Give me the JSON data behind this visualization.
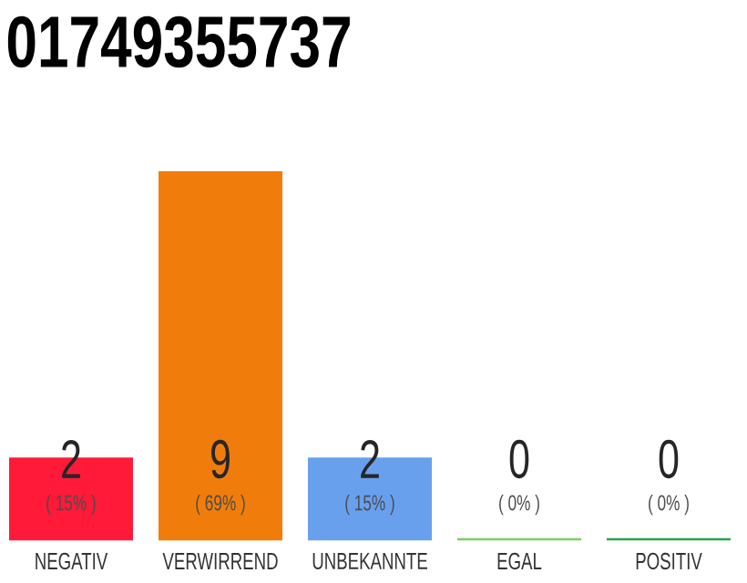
{
  "chart_data": {
    "type": "bar",
    "title": "01749355737",
    "categories": [
      "NEGATIV",
      "VERWIRREND",
      "UNBEKANNTE",
      "EGAL",
      "POSITIV"
    ],
    "values": [
      2,
      9,
      2,
      0,
      0
    ],
    "colors": [
      "#ff1a3a",
      "#f07d0b",
      "#69a0ee",
      "#7dcc6a",
      "#22a845"
    ],
    "data_labels": true,
    "annotations": [
      "( 15% )",
      "( 69% )",
      "( 15% )",
      "( 0% )",
      "( 0% )"
    ]
  }
}
